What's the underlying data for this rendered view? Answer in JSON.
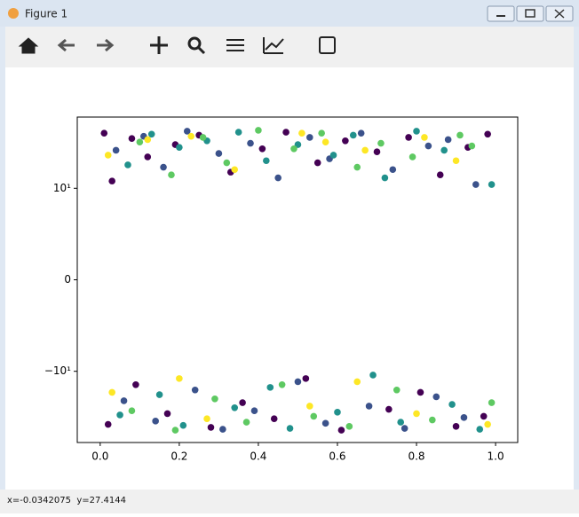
{
  "window": {
    "title": "Figure 1",
    "status": "x=-0.0342075  y=27.4144"
  },
  "chart_data": {
    "type": "scatter",
    "yscale": "symlog",
    "linthresh": 10,
    "xlim": [
      -0.058,
      1.056
    ],
    "ylim": [
      -60,
      60
    ],
    "xticks": [
      {
        "value": 0,
        "label": "0.0"
      },
      {
        "value": 0.2,
        "label": "0.2"
      },
      {
        "value": 0.4,
        "label": "0.4"
      },
      {
        "value": 0.6,
        "label": "0.6"
      },
      {
        "value": 0.8,
        "label": "0.8"
      },
      {
        "value": 1,
        "label": "1.0"
      }
    ],
    "yticks": [
      {
        "value": -10,
        "label": "−10¹"
      },
      0,
      {
        "value": 10,
        "label": "10¹"
      }
    ],
    "series": [
      {
        "color": "#440154",
        "x": [
          0.01,
          0.03,
          0.08,
          0.12,
          0.19,
          0.25,
          0.33,
          0.41,
          0.47,
          0.55,
          0.62,
          0.7,
          0.78,
          0.86,
          0.93,
          0.98,
          0.02,
          0.09,
          0.17,
          0.28,
          0.36,
          0.44,
          0.52,
          0.61,
          0.73,
          0.81,
          0.9,
          0.97
        ],
        "y": [
          40,
          12,
          35,
          22,
          30,
          38,
          15,
          27,
          41,
          19,
          33,
          25,
          36,
          14,
          28,
          39,
          -38,
          -14,
          -29,
          -41,
          -22,
          -33,
          -12,
          -44,
          -26,
          -17,
          -40,
          -31
        ]
      },
      {
        "color": "#3b528b",
        "x": [
          0.04,
          0.11,
          0.16,
          0.22,
          0.3,
          0.38,
          0.45,
          0.53,
          0.58,
          0.66,
          0.74,
          0.83,
          0.88,
          0.95,
          0.06,
          0.14,
          0.24,
          0.31,
          0.39,
          0.5,
          0.57,
          0.68,
          0.77,
          0.85,
          0.92
        ],
        "y": [
          26,
          37,
          17,
          42,
          24,
          31,
          13,
          36,
          21,
          40,
          16,
          29,
          34,
          11,
          -21,
          -35,
          -16,
          -43,
          -27,
          -13,
          -37,
          -24,
          -42,
          -19,
          -32
        ]
      },
      {
        "color": "#21918c",
        "x": [
          0.07,
          0.13,
          0.2,
          0.27,
          0.35,
          0.42,
          0.5,
          0.59,
          0.64,
          0.72,
          0.8,
          0.87,
          0.99,
          0.05,
          0.15,
          0.21,
          0.34,
          0.43,
          0.48,
          0.6,
          0.69,
          0.76,
          0.89,
          0.96
        ],
        "y": [
          18,
          39,
          28,
          33,
          41,
          20,
          30,
          23,
          38,
          13,
          42,
          26,
          11,
          -30,
          -18,
          -39,
          -25,
          -15,
          -42,
          -28,
          -11,
          -36,
          -23,
          -43
        ]
      },
      {
        "color": "#5ec962",
        "x": [
          0.1,
          0.18,
          0.26,
          0.32,
          0.4,
          0.49,
          0.56,
          0.65,
          0.71,
          0.79,
          0.91,
          0.94,
          0.08,
          0.19,
          0.29,
          0.37,
          0.46,
          0.54,
          0.63,
          0.75,
          0.84,
          0.99
        ],
        "y": [
          32,
          14,
          36,
          19,
          43,
          27,
          40,
          17,
          31,
          22,
          38,
          29,
          -27,
          -44,
          -20,
          -36,
          -14,
          -31,
          -40,
          -16,
          -34,
          -22
        ]
      },
      {
        "color": "#fde725",
        "x": [
          0.02,
          0.12,
          0.23,
          0.34,
          0.51,
          0.57,
          0.67,
          0.82,
          0.9,
          0.03,
          0.2,
          0.27,
          0.53,
          0.65,
          0.8,
          0.98
        ],
        "y": [
          23,
          34,
          37,
          16,
          40,
          32,
          26,
          36,
          20,
          -17,
          -12,
          -33,
          -24,
          -13,
          -29,
          -38
        ]
      }
    ]
  }
}
